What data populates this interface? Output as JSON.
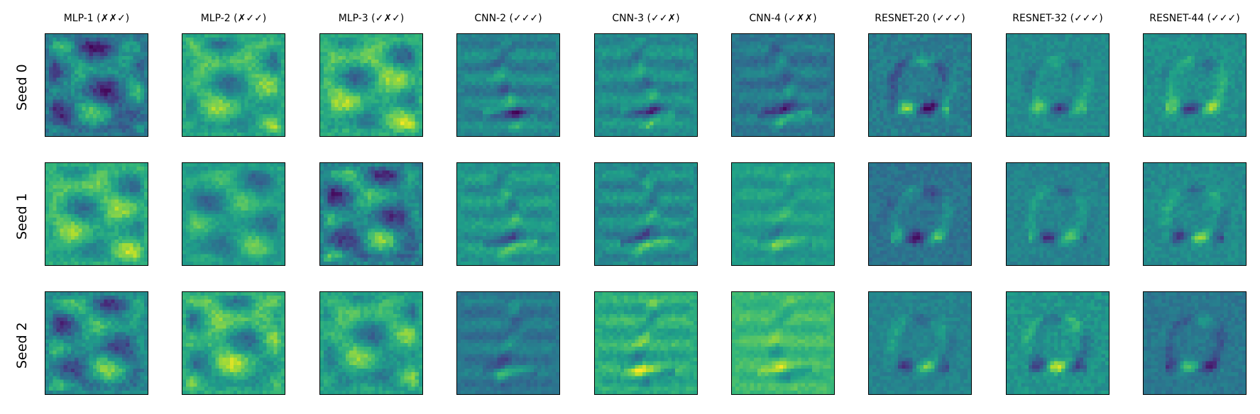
{
  "chart_data": {
    "type": "heatmap",
    "colormap": "viridis",
    "grid": false,
    "columns": [
      "MLP-1 (✗✗✓)",
      "MLP-2 (✗✓✓)",
      "MLP-3 (✓✗✓)",
      "CNN-2 (✓✓✓)",
      "CNN-3 (✓✓✗)",
      "CNN-4 (✓✗✗)",
      "RESNET-20 (✓✓✓)",
      "RESNET-32 (✓✓✓)",
      "RESNET-44 (✓✓✓)"
    ],
    "rows": [
      "Seed 0",
      "Seed 1",
      "Seed 2"
    ],
    "panels": [
      [
        {
          "style": "mlp",
          "bg": 0.4,
          "contrast": 0.45
        },
        {
          "style": "mlp",
          "bg": 0.6,
          "contrast": 0.35
        },
        {
          "style": "mlp",
          "bg": 0.62,
          "contrast": 0.38
        },
        {
          "style": "cnn",
          "bg": 0.45,
          "contrast": 0.3
        },
        {
          "style": "cnn",
          "bg": 0.48,
          "contrast": 0.3
        },
        {
          "style": "cnn",
          "bg": 0.4,
          "contrast": 0.3
        },
        {
          "style": "resnet",
          "bg": 0.42,
          "contrast": 0.4
        },
        {
          "style": "resnet",
          "bg": 0.48,
          "contrast": 0.3
        },
        {
          "style": "resnet",
          "bg": 0.5,
          "contrast": 0.35
        }
      ],
      [
        {
          "style": "mlp",
          "bg": 0.62,
          "contrast": 0.35
        },
        {
          "style": "mlp",
          "bg": 0.55,
          "contrast": 0.3
        },
        {
          "style": "mlp",
          "bg": 0.45,
          "contrast": 0.45
        },
        {
          "style": "cnn",
          "bg": 0.52,
          "contrast": 0.3
        },
        {
          "style": "cnn",
          "bg": 0.48,
          "contrast": 0.32
        },
        {
          "style": "cnn",
          "bg": 0.55,
          "contrast": 0.22
        },
        {
          "style": "resnet",
          "bg": 0.38,
          "contrast": 0.35
        },
        {
          "style": "resnet",
          "bg": 0.45,
          "contrast": 0.3
        },
        {
          "style": "resnet",
          "bg": 0.48,
          "contrast": 0.32
        }
      ],
      [
        {
          "style": "mlp",
          "bg": 0.48,
          "contrast": 0.42
        },
        {
          "style": "mlp",
          "bg": 0.62,
          "contrast": 0.38
        },
        {
          "style": "mlp",
          "bg": 0.58,
          "contrast": 0.35
        },
        {
          "style": "cnn",
          "bg": 0.4,
          "contrast": 0.25
        },
        {
          "style": "cnn",
          "bg": 0.62,
          "contrast": 0.3
        },
        {
          "style": "cnn",
          "bg": 0.68,
          "contrast": 0.22
        },
        {
          "style": "resnet",
          "bg": 0.45,
          "contrast": 0.3
        },
        {
          "style": "resnet",
          "bg": 0.52,
          "contrast": 0.38
        },
        {
          "style": "resnet",
          "bg": 0.4,
          "contrast": 0.32
        }
      ]
    ]
  }
}
